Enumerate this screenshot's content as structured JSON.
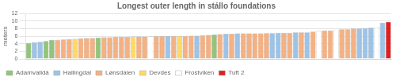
{
  "chart_data": {
    "type": "bar",
    "title": "Longest outer length in stállo foundations",
    "ylabel": "meters",
    "ylim": [
      0,
      12
    ],
    "yticks": [
      0,
      2,
      4,
      6,
      8,
      10,
      12
    ],
    "grid": true,
    "stacked": true,
    "legend": "bottom",
    "tick_labels": "y",
    "categories": [
      null,
      null,
      null,
      null,
      null,
      null,
      null,
      null,
      null,
      null,
      null,
      null,
      null,
      null,
      null,
      null,
      null,
      null,
      null,
      null,
      null,
      null,
      null,
      null,
      null,
      null,
      null,
      null,
      null,
      null,
      null,
      null,
      null,
      null,
      null,
      null,
      null,
      null,
      null,
      null,
      null,
      null,
      null,
      null,
      null,
      null,
      null,
      null,
      null,
      null,
      null,
      null,
      null,
      null,
      null,
      null,
      null,
      null,
      null,
      null,
      null,
      null,
      null
    ],
    "series": [
      {
        "name": "Adamvalldá",
        "color": "#92c47b",
        "values": [
          4.2,
          null,
          null,
          4.7,
          5.0,
          null,
          null,
          null,
          null,
          null,
          null,
          null,
          5.6,
          null,
          null,
          null,
          null,
          null,
          null,
          null,
          null,
          null,
          null,
          null,
          null,
          null,
          null,
          null,
          null,
          null,
          null,
          null,
          6.4,
          null,
          null,
          null,
          null,
          null,
          null,
          null,
          null,
          null,
          null,
          null,
          null,
          null,
          null,
          null,
          null,
          null,
          null,
          null,
          null,
          null,
          null,
          null,
          null,
          null,
          null,
          null,
          null,
          null,
          null
        ]
      },
      {
        "name": "Hallingdal",
        "color": "#9dc3e6",
        "values": [
          null,
          4.4,
          4.5,
          null,
          null,
          null,
          null,
          null,
          null,
          null,
          null,
          null,
          null,
          null,
          null,
          null,
          null,
          null,
          null,
          null,
          null,
          null,
          null,
          null,
          6.0,
          null,
          null,
          null,
          null,
          6.1,
          null,
          null,
          null,
          null,
          6.6,
          null,
          6.7,
          null,
          null,
          null,
          null,
          null,
          6.8,
          6.9,
          null,
          null,
          7.0,
          null,
          7.0,
          null,
          null,
          null,
          null,
          null,
          null,
          null,
          null,
          8.0,
          8.1,
          8.2,
          null,
          9.5,
          null
        ]
      },
      {
        "name": "Lønsdalen",
        "color": "#f4b183",
        "values": [
          null,
          null,
          null,
          null,
          null,
          5.0,
          5.1,
          5.2,
          null,
          5.4,
          5.5,
          5.5,
          null,
          5.7,
          5.7,
          5.8,
          5.8,
          5.8,
          null,
          5.9,
          5.9,
          null,
          6.0,
          6.0,
          null,
          6.0,
          null,
          6.0,
          6.1,
          null,
          6.2,
          6.3,
          null,
          6.5,
          null,
          6.6,
          null,
          6.7,
          6.7,
          6.7,
          6.7,
          6.8,
          null,
          null,
          6.9,
          6.9,
          null,
          7.0,
          null,
          7.2,
          null,
          7.5,
          7.5,
          null,
          7.8,
          7.8,
          8.0,
          null,
          null,
          null,
          null,
          null,
          null
        ]
      },
      {
        "name": "Devdes",
        "color": "#ffd966",
        "values": [
          null,
          null,
          null,
          null,
          null,
          null,
          null,
          null,
          5.3,
          null,
          null,
          null,
          null,
          null,
          null,
          null,
          null,
          null,
          5.9,
          null,
          null,
          null,
          null,
          null,
          null,
          null,
          6.0,
          null,
          null,
          null,
          null,
          null,
          null,
          null,
          null,
          null,
          null,
          null,
          null,
          null,
          null,
          null,
          null,
          null,
          null,
          null,
          null,
          null,
          null,
          null,
          null,
          null,
          null,
          null,
          null,
          null,
          null,
          null,
          null,
          null,
          null,
          null,
          null
        ]
      },
      {
        "name": "Frostviken",
        "color": "#ffffff",
        "values": [
          null,
          null,
          null,
          null,
          null,
          null,
          null,
          null,
          null,
          null,
          null,
          null,
          null,
          null,
          null,
          null,
          null,
          null,
          null,
          null,
          null,
          5.9,
          null,
          null,
          null,
          null,
          null,
          null,
          null,
          null,
          null,
          null,
          null,
          null,
          null,
          null,
          null,
          null,
          null,
          null,
          null,
          null,
          null,
          null,
          null,
          null,
          null,
          null,
          null,
          null,
          7.4,
          null,
          null,
          7.7,
          null,
          null,
          null,
          null,
          null,
          null,
          8.3,
          null,
          null
        ]
      },
      {
        "name": "Tuft 2",
        "color": "#e02020",
        "values": [
          null,
          null,
          null,
          null,
          null,
          null,
          null,
          null,
          null,
          null,
          null,
          null,
          null,
          null,
          null,
          null,
          null,
          null,
          null,
          null,
          null,
          null,
          null,
          null,
          null,
          null,
          null,
          null,
          null,
          null,
          null,
          null,
          null,
          null,
          null,
          null,
          null,
          null,
          null,
          null,
          null,
          null,
          null,
          null,
          null,
          null,
          null,
          null,
          null,
          null,
          null,
          null,
          null,
          null,
          null,
          null,
          null,
          null,
          null,
          null,
          null,
          null,
          9.8
        ]
      }
    ]
  }
}
